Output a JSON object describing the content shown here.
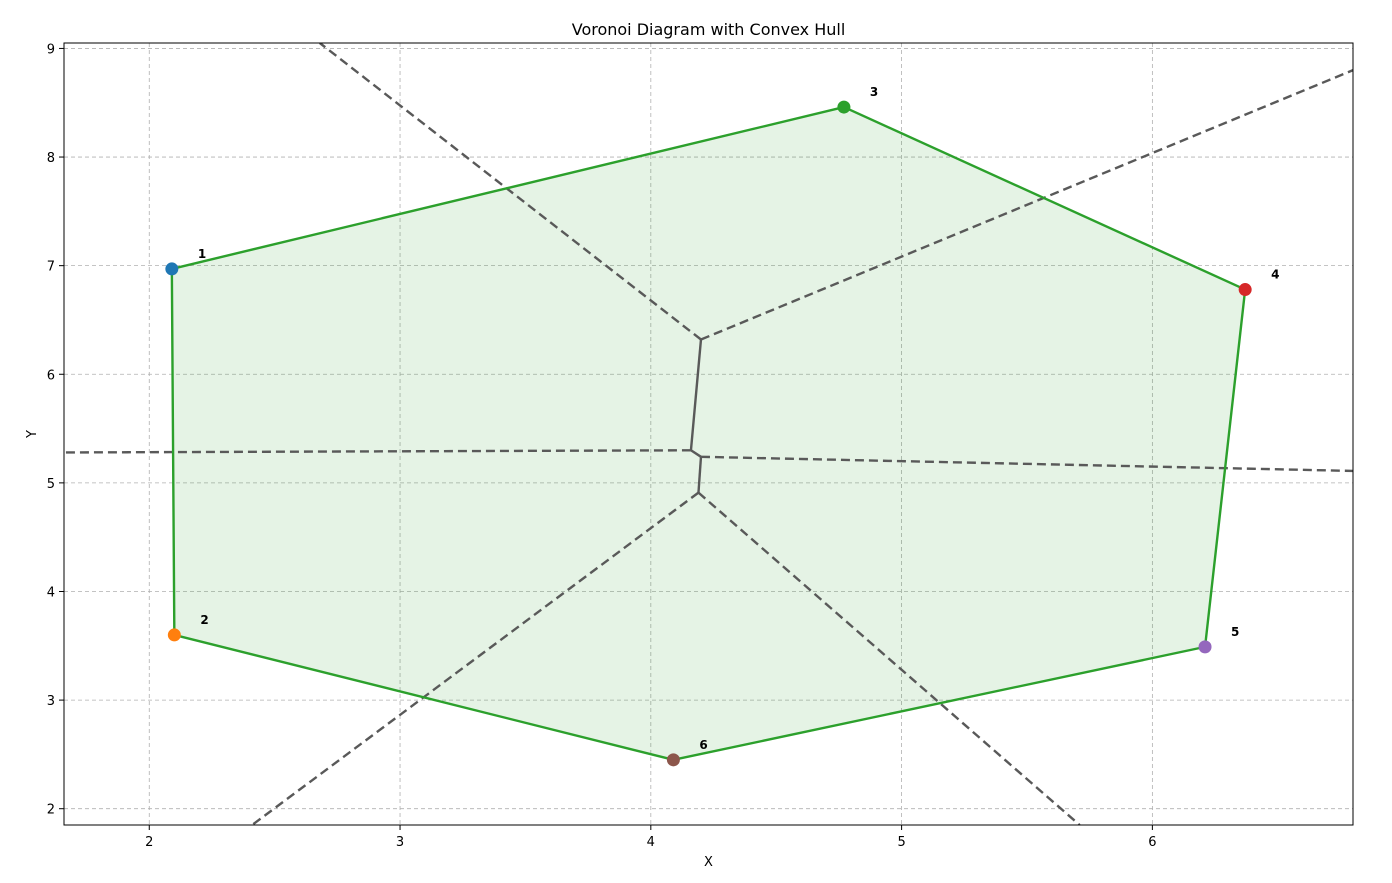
{
  "chart_data": {
    "type": "scatter",
    "title": "Voronoi Diagram with Convex Hull",
    "xlabel": "X",
    "ylabel": "Y",
    "xlim": [
      1.66,
      6.8
    ],
    "ylim": [
      1.85,
      9.05
    ],
    "xticks": [
      2,
      3,
      4,
      5,
      6
    ],
    "yticks": [
      2,
      3,
      4,
      5,
      6,
      7,
      8,
      9
    ],
    "grid": true,
    "points": [
      {
        "label": "1",
        "x": 2.09,
        "y": 6.97,
        "color": "#1f77b4"
      },
      {
        "label": "2",
        "x": 2.1,
        "y": 3.6,
        "color": "#ff7f0e"
      },
      {
        "label": "3",
        "x": 4.77,
        "y": 8.46,
        "color": "#2ca02c"
      },
      {
        "label": "4",
        "x": 6.37,
        "y": 6.78,
        "color": "#d62728"
      },
      {
        "label": "5",
        "x": 6.21,
        "y": 3.49,
        "color": "#9467bd"
      },
      {
        "label": "6",
        "x": 4.09,
        "y": 2.45,
        "color": "#8c564b"
      }
    ],
    "convex_hull": {
      "order": [
        "1",
        "3",
        "4",
        "5",
        "6",
        "2"
      ],
      "edge_color": "#2ca02c",
      "fill_color": "#2ca02c"
    },
    "voronoi": {
      "vertices": [
        {
          "x": 4.2,
          "y": 6.32
        },
        {
          "x": 4.16,
          "y": 5.3
        },
        {
          "x": 4.2,
          "y": 5.24
        },
        {
          "x": 4.19,
          "y": 4.91
        }
      ],
      "finite_edges": [
        [
          0,
          1
        ],
        [
          1,
          2
        ],
        [
          2,
          3
        ]
      ],
      "infinite_edges": [
        {
          "from": 0,
          "to": [
            2.68,
            9.05
          ]
        },
        {
          "from": 0,
          "to": [
            6.8,
            8.8
          ]
        },
        {
          "from": 1,
          "to": [
            1.66,
            5.28
          ]
        },
        {
          "from": 2,
          "to": [
            6.8,
            5.11
          ]
        },
        {
          "from": 3,
          "to": [
            2.41,
            1.85
          ]
        },
        {
          "from": 3,
          "to": [
            5.71,
            1.85
          ]
        }
      ],
      "line_color": "#595959"
    }
  }
}
